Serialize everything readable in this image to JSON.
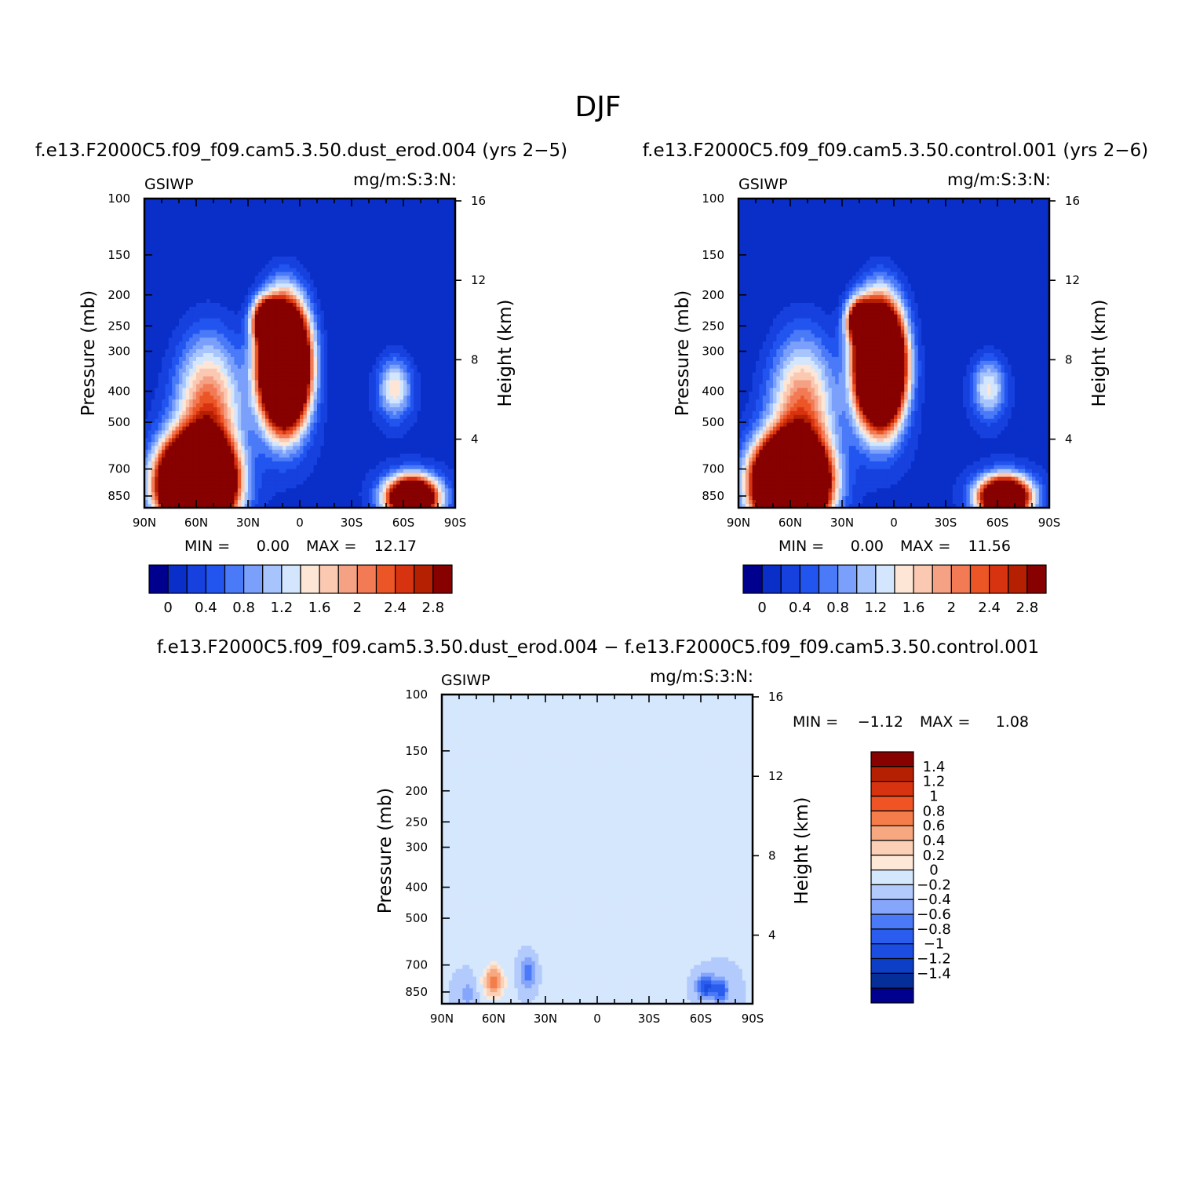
{
  "figure": {
    "title": "DJF"
  },
  "colors": {
    "abs_palette": [
      "#00008f",
      "#0a2ec8",
      "#1641de",
      "#2255f0",
      "#4a7af8",
      "#7aa0fb",
      "#a7c5fc",
      "#d3e6fd",
      "#fde6d6",
      "#fbc8b1",
      "#f5a184",
      "#f27a55",
      "#ec5526",
      "#d83310",
      "#b52003",
      "#870101"
    ],
    "diff_palette": [
      "#00008f",
      "#062e99",
      "#0c3fc6",
      "#1a4de0",
      "#2a5ded",
      "#4a7af8",
      "#86a6fb",
      "#b2cafc",
      "#d5e7fd",
      "#fde8d8",
      "#fbd0b6",
      "#f8a880",
      "#f47d4b",
      "#f05424",
      "#d83310",
      "#b52003",
      "#870101"
    ]
  },
  "panels": [
    {
      "id": "dust",
      "case_title": "f.e13.F2000C5.f09_f09.cam5.3.50.dust_erod.004 (yrs 2−5)",
      "left_label": "GSIWP",
      "right_label": "mg/m:S:3:N:",
      "ylabel": "Pressure (mb)",
      "ylabel_right": "Height (km)",
      "stats": {
        "min_label": "MIN =",
        "min": "0.00",
        "max_label": "MAX =",
        "max": "12.17"
      }
    },
    {
      "id": "control",
      "case_title": "f.e13.F2000C5.f09_f09.cam5.3.50.control.001 (yrs 2−6)",
      "left_label": "GSIWP",
      "right_label": "mg/m:S:3:N:",
      "ylabel": "Pressure (mb)",
      "ylabel_right": "Height (km)",
      "stats": {
        "min_label": "MIN =",
        "min": "0.00",
        "max_label": "MAX =",
        "max": "11.56"
      }
    },
    {
      "id": "diff",
      "case_title": "f.e13.F2000C5.f09_f09.cam5.3.50.dust_erod.004 − f.e13.F2000C5.f09_f09.cam5.3.50.control.001",
      "left_label": "GSIWP",
      "right_label": "mg/m:S:3:N:",
      "ylabel": "Pressure (mb)",
      "ylabel_right": "Height (km)",
      "stats": {
        "min_label": "MIN =",
        "min": "−1.12",
        "max_label": "MAX =",
        "max": "1.08"
      }
    }
  ],
  "chart_data": [
    {
      "type": "heatmap",
      "panel": "dust",
      "x_ticks": [
        "90N",
        "60N",
        "30N",
        "0",
        "30S",
        "60S",
        "90S"
      ],
      "x_tick_values": [
        90,
        60,
        30,
        0,
        -30,
        -60,
        -90
      ],
      "xlim": [
        90,
        -90
      ],
      "y_ticks": [
        "100",
        "150",
        "200",
        "250",
        "300",
        "400",
        "500",
        "700",
        "850"
      ],
      "y_tick_values": [
        100,
        150,
        200,
        250,
        300,
        400,
        500,
        700,
        850
      ],
      "ylim": [
        100,
        925
      ],
      "y_scale": "log",
      "y2_ticks": [
        "16",
        "12",
        "8",
        "4"
      ],
      "y2_tick_values": [
        16,
        12,
        8,
        4
      ],
      "colorbar_labels": [
        "0",
        "0.4",
        "0.8",
        "1.2",
        "1.6",
        "2",
        "2.4",
        "2.8"
      ],
      "colorbar_levels": [
        0,
        0.2,
        0.4,
        0.6,
        0.8,
        1.0,
        1.2,
        1.4,
        1.6,
        1.8,
        2.0,
        2.2,
        2.4,
        2.6,
        2.8
      ],
      "blobs": [
        {
          "lat": 9,
          "p": 330,
          "amp": 10.5,
          "wlat": 9,
          "wlogp": 0.28
        },
        {
          "lat": 20,
          "p": 240,
          "amp": 3.5,
          "wlat": 5,
          "wlogp": 0.1
        },
        {
          "lat": 60,
          "p": 780,
          "amp": 12.0,
          "wlat": 13,
          "wlogp": 0.2
        },
        {
          "lat": 53,
          "p": 450,
          "amp": 2.2,
          "wlat": 13,
          "wlogp": 0.35
        },
        {
          "lat": -65,
          "p": 860,
          "amp": 6.0,
          "wlat": 10,
          "wlogp": 0.1
        },
        {
          "lat": -55,
          "p": 390,
          "amp": 1.5,
          "wlat": 7,
          "wlogp": 0.15
        }
      ]
    },
    {
      "type": "heatmap",
      "panel": "control",
      "x_ticks": [
        "90N",
        "60N",
        "30N",
        "0",
        "30S",
        "60S",
        "90S"
      ],
      "x_tick_values": [
        90,
        60,
        30,
        0,
        -30,
        -60,
        -90
      ],
      "xlim": [
        90,
        -90
      ],
      "y_ticks": [
        "100",
        "150",
        "200",
        "250",
        "300",
        "400",
        "500",
        "700",
        "850"
      ],
      "y_tick_values": [
        100,
        150,
        200,
        250,
        300,
        400,
        500,
        700,
        850
      ],
      "ylim": [
        100,
        925
      ],
      "y_scale": "log",
      "y2_ticks": [
        "16",
        "12",
        "8",
        "4"
      ],
      "y2_tick_values": [
        16,
        12,
        8,
        4
      ],
      "colorbar_labels": [
        "0",
        "0.4",
        "0.8",
        "1.2",
        "1.6",
        "2",
        "2.4",
        "2.8"
      ],
      "colorbar_levels": [
        0,
        0.2,
        0.4,
        0.6,
        0.8,
        1.0,
        1.2,
        1.4,
        1.6,
        1.8,
        2.0,
        2.2,
        2.4,
        2.6,
        2.8
      ],
      "blobs": [
        {
          "lat": 8,
          "p": 330,
          "amp": 10.0,
          "wlat": 9,
          "wlogp": 0.28
        },
        {
          "lat": 20,
          "p": 240,
          "amp": 3.4,
          "wlat": 5,
          "wlogp": 0.1
        },
        {
          "lat": 60,
          "p": 780,
          "amp": 11.5,
          "wlat": 13,
          "wlogp": 0.2
        },
        {
          "lat": 53,
          "p": 450,
          "amp": 2.1,
          "wlat": 13,
          "wlogp": 0.35
        },
        {
          "lat": -64,
          "p": 860,
          "amp": 6.0,
          "wlat": 10,
          "wlogp": 0.1
        },
        {
          "lat": -55,
          "p": 390,
          "amp": 1.4,
          "wlat": 7,
          "wlogp": 0.15
        }
      ]
    },
    {
      "type": "heatmap",
      "panel": "diff",
      "x_ticks": [
        "90N",
        "60N",
        "30N",
        "0",
        "30S",
        "60S",
        "90S"
      ],
      "x_tick_values": [
        90,
        60,
        30,
        0,
        -30,
        -60,
        -90
      ],
      "xlim": [
        90,
        -90
      ],
      "y_ticks": [
        "100",
        "150",
        "200",
        "250",
        "300",
        "400",
        "500",
        "700",
        "850"
      ],
      "y_tick_values": [
        100,
        150,
        200,
        250,
        300,
        400,
        500,
        700,
        850
      ],
      "ylim": [
        100,
        925
      ],
      "y_scale": "log",
      "y2_ticks": [
        "16",
        "12",
        "8",
        "4"
      ],
      "y2_tick_values": [
        16,
        12,
        8,
        4
      ],
      "colorbar_labels": [
        "1.4",
        "1.2",
        "1",
        "0.8",
        "0.6",
        "0.4",
        "0.2",
        "0",
        "−0.2",
        "−0.4",
        "−0.6",
        "−0.8",
        "−1",
        "−1.2",
        "−1.4"
      ],
      "colorbar_levels": [
        -1.4,
        -1.2,
        -1.0,
        -0.8,
        -0.6,
        -0.4,
        -0.2,
        0,
        0.2,
        0.4,
        0.6,
        0.8,
        1.0,
        1.2,
        1.4
      ],
      "blobs": [
        {
          "lat": 60,
          "p": 790,
          "amp": 1.0,
          "wlat": 4,
          "wlogp": 0.08
        },
        {
          "lat": 40,
          "p": 740,
          "amp": -0.55,
          "wlat": 3,
          "wlogp": 0.08
        },
        {
          "lat": 75,
          "p": 860,
          "amp": -0.35,
          "wlat": 3,
          "wlogp": 0.06
        },
        {
          "lat": -63,
          "p": 820,
          "amp": -0.9,
          "wlat": 4,
          "wlogp": 0.06
        },
        {
          "lat": -72,
          "p": 840,
          "amp": -0.7,
          "wlat": 3,
          "wlogp": 0.06
        },
        {
          "lat": 10,
          "p": 300,
          "amp": 0.12,
          "wlat": 25,
          "wlogp": 0.6
        },
        {
          "lat": -15,
          "p": 250,
          "amp": 0.1,
          "wlat": 15,
          "wlogp": 0.7
        },
        {
          "lat": -40,
          "p": 400,
          "amp": 0.1,
          "wlat": 10,
          "wlogp": 0.5
        }
      ]
    }
  ]
}
